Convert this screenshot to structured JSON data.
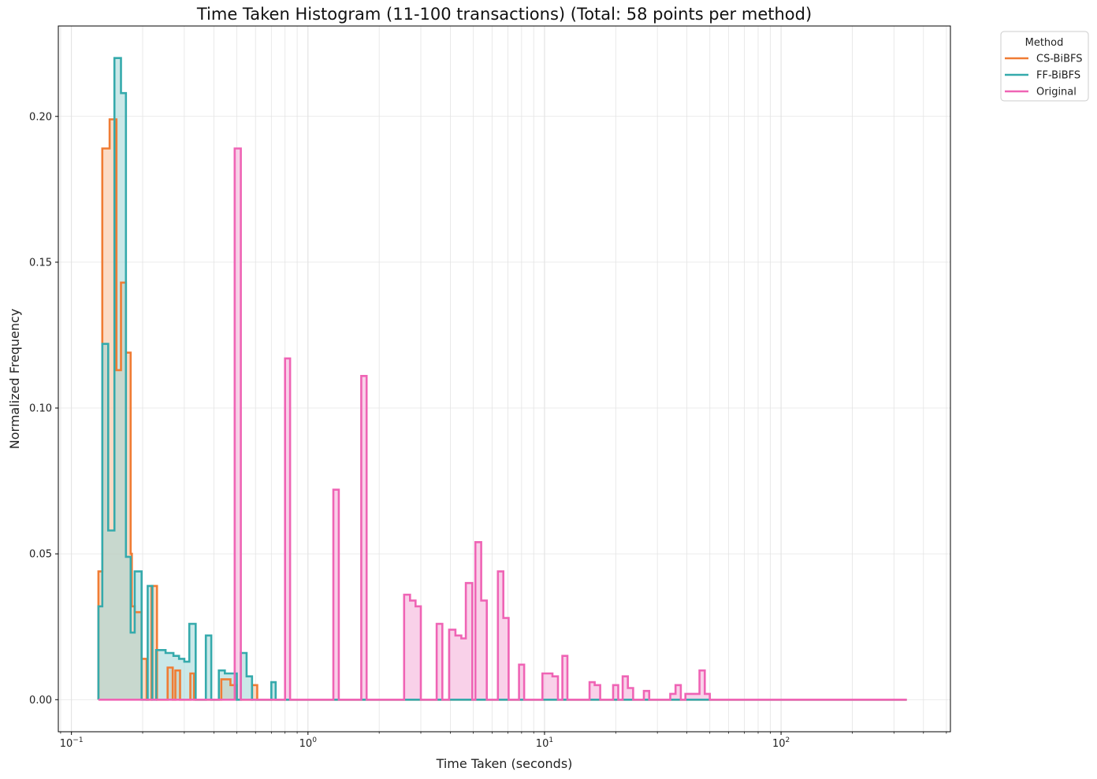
{
  "chart_data": {
    "type": "area",
    "title": "Time Taken Histogram (11-100 transactions) (Total: 58 points per method)",
    "xlabel": "Time Taken (seconds)",
    "ylabel": "Normalized Frequency",
    "x_scale": "log",
    "xlim": [
      0.088,
      520
    ],
    "ylim": [
      -0.011,
      0.231
    ],
    "x_ticks": [
      {
        "value": 0.1,
        "base": "10",
        "exp": "−1"
      },
      {
        "value": 1,
        "base": "10",
        "exp": "0"
      },
      {
        "value": 10,
        "base": "10",
        "exp": "1"
      },
      {
        "value": 100,
        "base": "10",
        "exp": "2"
      }
    ],
    "y_ticks": [
      {
        "value": 0.0,
        "label": "0.00"
      },
      {
        "value": 0.05,
        "label": "0.05"
      },
      {
        "value": 0.1,
        "label": "0.10"
      },
      {
        "value": 0.15,
        "label": "0.15"
      },
      {
        "value": 0.2,
        "label": "0.20"
      }
    ],
    "grid": true,
    "legend": {
      "title": "Method",
      "position": "outside top-right"
    },
    "x_range": [
      0.13,
      340
    ],
    "series": [
      {
        "name": "CS-BiBFS",
        "color": "#f07c34",
        "fill": "#f7bd95",
        "fill_opacity": 0.55,
        "bins": [
          [
            0.13,
            0.044
          ],
          [
            0.135,
            0.189
          ],
          [
            0.145,
            0.199
          ],
          [
            0.155,
            0.113
          ],
          [
            0.162,
            0.143
          ],
          [
            0.17,
            0.119
          ],
          [
            0.178,
            0.05
          ],
          [
            0.18,
            0.032
          ],
          [
            0.185,
            0.03
          ],
          [
            0.198,
            0.014
          ],
          [
            0.208,
            0.0
          ],
          [
            0.218,
            0.039
          ],
          [
            0.23,
            0.0
          ],
          [
            0.255,
            0.011
          ],
          [
            0.268,
            0.0
          ],
          [
            0.27,
            0.0
          ],
          [
            0.275,
            0.01
          ],
          [
            0.288,
            0.0
          ],
          [
            0.318,
            0.009
          ],
          [
            0.33,
            0.0
          ],
          [
            0.43,
            0.007
          ],
          [
            0.47,
            0.005
          ],
          [
            0.5,
            0.0
          ],
          [
            0.58,
            0.005
          ],
          [
            0.61,
            0.0
          ]
        ]
      },
      {
        "name": "FF-BiBFS",
        "color": "#35aaac",
        "fill": "#9fd6d6",
        "fill_opacity": 0.55,
        "bins": [
          [
            0.13,
            0.032
          ],
          [
            0.135,
            0.122
          ],
          [
            0.143,
            0.058
          ],
          [
            0.152,
            0.22
          ],
          [
            0.162,
            0.208
          ],
          [
            0.17,
            0.049
          ],
          [
            0.178,
            0.023
          ],
          [
            0.185,
            0.044
          ],
          [
            0.198,
            0.0
          ],
          [
            0.21,
            0.039
          ],
          [
            0.22,
            0.0
          ],
          [
            0.222,
            0.0
          ],
          [
            0.228,
            0.017
          ],
          [
            0.24,
            0.017
          ],
          [
            0.25,
            0.016
          ],
          [
            0.26,
            0.016
          ],
          [
            0.27,
            0.015
          ],
          [
            0.285,
            0.014
          ],
          [
            0.3,
            0.013
          ],
          [
            0.315,
            0.026
          ],
          [
            0.335,
            0.0
          ],
          [
            0.37,
            0.022
          ],
          [
            0.39,
            0.0
          ],
          [
            0.42,
            0.01
          ],
          [
            0.445,
            0.009
          ],
          [
            0.5,
            0.0
          ],
          [
            0.52,
            0.016
          ],
          [
            0.55,
            0.008
          ],
          [
            0.58,
            0.0
          ],
          [
            0.7,
            0.006
          ],
          [
            0.73,
            0.0
          ]
        ]
      },
      {
        "name": "Original",
        "color": "#ef64b5",
        "fill": "#f7bde0",
        "fill_opacity": 0.7,
        "bins": [
          [
            0.13,
            0.0
          ],
          [
            0.49,
            0.189
          ],
          [
            0.52,
            0.0
          ],
          [
            0.8,
            0.117
          ],
          [
            0.84,
            0.0
          ],
          [
            1.28,
            0.072
          ],
          [
            1.35,
            0.0
          ],
          [
            1.68,
            0.111
          ],
          [
            1.77,
            0.0
          ],
          [
            2.55,
            0.036
          ],
          [
            2.7,
            0.034
          ],
          [
            2.85,
            0.032
          ],
          [
            3.0,
            0.0
          ],
          [
            3.5,
            0.026
          ],
          [
            3.7,
            0.0
          ],
          [
            3.95,
            0.024
          ],
          [
            4.2,
            0.022
          ],
          [
            4.45,
            0.021
          ],
          [
            4.65,
            0.04
          ],
          [
            4.95,
            0.0
          ],
          [
            5.1,
            0.054
          ],
          [
            5.4,
            0.034
          ],
          [
            5.7,
            0.0
          ],
          [
            6.35,
            0.044
          ],
          [
            6.7,
            0.028
          ],
          [
            7.05,
            0.0
          ],
          [
            7.8,
            0.012
          ],
          [
            8.2,
            0.0
          ],
          [
            9.8,
            0.009
          ],
          [
            10.3,
            0.009
          ],
          [
            10.8,
            0.008
          ],
          [
            11.4,
            0.0
          ],
          [
            11.9,
            0.015
          ],
          [
            12.5,
            0.0
          ],
          [
            15.5,
            0.006
          ],
          [
            16.3,
            0.005
          ],
          [
            17.2,
            0.0
          ],
          [
            19.5,
            0.005
          ],
          [
            20.5,
            0.0
          ],
          [
            21.4,
            0.008
          ],
          [
            22.5,
            0.004
          ],
          [
            23.7,
            0.0
          ],
          [
            26.3,
            0.003
          ],
          [
            27.7,
            0.0
          ],
          [
            34.0,
            0.002
          ],
          [
            35.8,
            0.005
          ],
          [
            37.7,
            0.0
          ],
          [
            39.4,
            0.002
          ],
          [
            41.5,
            0.002
          ],
          [
            43.7,
            0.002
          ],
          [
            45.2,
            0.01
          ],
          [
            47.6,
            0.002
          ],
          [
            50.0,
            0.0
          ],
          [
            340,
            0.0
          ]
        ]
      }
    ]
  }
}
